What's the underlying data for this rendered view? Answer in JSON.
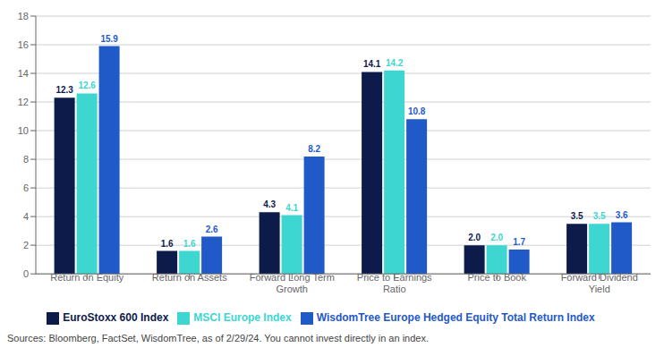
{
  "chart_data": {
    "type": "bar",
    "categories": [
      "Return on Equity",
      "Return on Assets",
      "Forward Long Term\nGrowth",
      "Price to Earnings\nRatio",
      "Price to Book",
      "Forward Dividend\nYield"
    ],
    "series": [
      {
        "name": "EuroStoxx 600 Index",
        "color": "#0d1b4b",
        "values": [
          12.3,
          1.6,
          4.3,
          14.1,
          2.0,
          3.5
        ],
        "value_labels": [
          "12.3",
          "1.6",
          "4.3",
          "14.1",
          "2.0",
          "3.5"
        ]
      },
      {
        "name": "MSCI Europe Index",
        "color": "#3dd6d0",
        "values": [
          12.6,
          1.6,
          4.1,
          14.2,
          2.0,
          3.5
        ],
        "value_labels": [
          "12.6",
          "1.6",
          "4.1",
          "14.2",
          "2.0",
          "3.5"
        ]
      },
      {
        "name": "WisdomTree Europe Hedged Equity Total Return Index",
        "color": "#1f5ac8",
        "values": [
          15.9,
          2.6,
          8.2,
          10.8,
          1.7,
          3.6
        ],
        "value_labels": [
          "15.9",
          "2.6",
          "8.2",
          "10.8",
          "1.7",
          "3.6"
        ]
      }
    ],
    "ylim": [
      0,
      18
    ],
    "yticks": [
      0,
      2,
      4,
      6,
      8,
      10,
      12,
      14,
      16,
      18
    ],
    "grid": true,
    "data_labels": true,
    "legend": "bottom",
    "annotations": [
      "Sources: Bloomberg, FactSet, WisdomTree, as of 2/29/24. You cannot invest directly in an index."
    ]
  }
}
